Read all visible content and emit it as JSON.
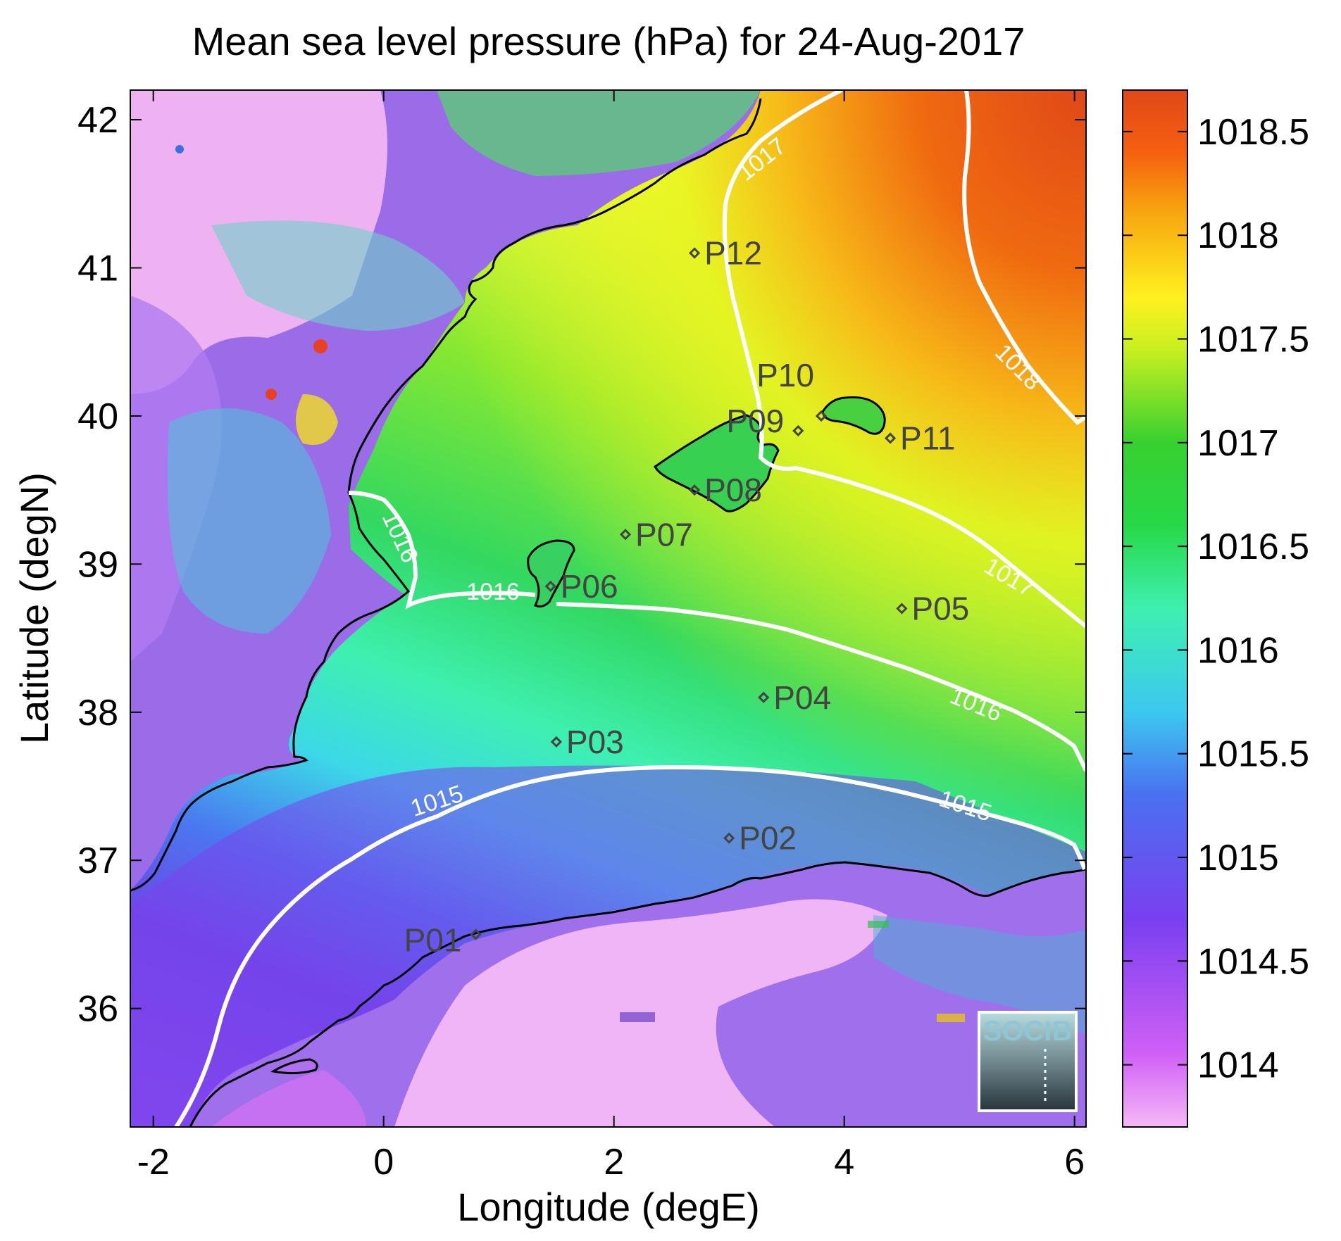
{
  "title": "Mean sea level pressure (hPa) for 24-Aug-2017",
  "xlabel": "Longitude (degE)",
  "ylabel": "Latitude (degN)",
  "x_ticks": [
    "-2",
    "0",
    "2",
    "4",
    "6"
  ],
  "y_ticks": [
    "42",
    "41",
    "40",
    "39",
    "38",
    "37",
    "36"
  ],
  "colorbar_ticks": [
    "1018.5",
    "1018",
    "1017.5",
    "1017",
    "1016.5",
    "1016",
    "1015.5",
    "1015",
    "1014.5",
    "1014"
  ],
  "contour_labels": [
    "1017",
    "1018",
    "1016",
    "1016",
    "1017",
    "1016",
    "1015",
    "1015"
  ],
  "station_labels": [
    "P12",
    "P10",
    "P09",
    "P11",
    "P08",
    "P07",
    "P06",
    "P05",
    "P04",
    "P03",
    "P02",
    "P01"
  ],
  "logo_text": "SOCIB",
  "colors": {
    "pressure_low": "#f6b8f6",
    "pressure_mid_low": "#7a3ff0",
    "pressure_mid": "#3fe6c8",
    "pressure_mid_high": "#2fcf2f",
    "pressure_high": "#e0ff20",
    "pressure_max": "#e04818",
    "coast": "#000000",
    "contour": "#ffffff",
    "station": "#444444"
  },
  "chart_data": {
    "type": "heatmap",
    "variable": "Mean sea level pressure",
    "units": "hPa",
    "date": "24-Aug-2017",
    "xlim": [
      -2.2,
      6.1
    ],
    "ylim": [
      35.2,
      42.2
    ],
    "colorbar_range": [
      1013.7,
      1018.7
    ],
    "contour_levels": [
      1015,
      1016,
      1017,
      1018
    ],
    "stations": [
      {
        "name": "P01",
        "lon": 0.8,
        "lat": 36.5
      },
      {
        "name": "P02",
        "lon": 3.0,
        "lat": 37.15
      },
      {
        "name": "P03",
        "lon": 1.5,
        "lat": 37.8
      },
      {
        "name": "P04",
        "lon": 3.3,
        "lat": 38.1
      },
      {
        "name": "P05",
        "lon": 4.5,
        "lat": 38.7
      },
      {
        "name": "P06",
        "lon": 1.45,
        "lat": 38.85
      },
      {
        "name": "P07",
        "lon": 2.1,
        "lat": 39.2
      },
      {
        "name": "P08",
        "lon": 2.7,
        "lat": 39.5
      },
      {
        "name": "P09",
        "lon": 3.6,
        "lat": 39.9
      },
      {
        "name": "P10",
        "lon": 3.8,
        "lat": 40.0
      },
      {
        "name": "P11",
        "lon": 4.4,
        "lat": 39.85
      },
      {
        "name": "P12",
        "lon": 2.7,
        "lat": 41.1
      }
    ]
  }
}
